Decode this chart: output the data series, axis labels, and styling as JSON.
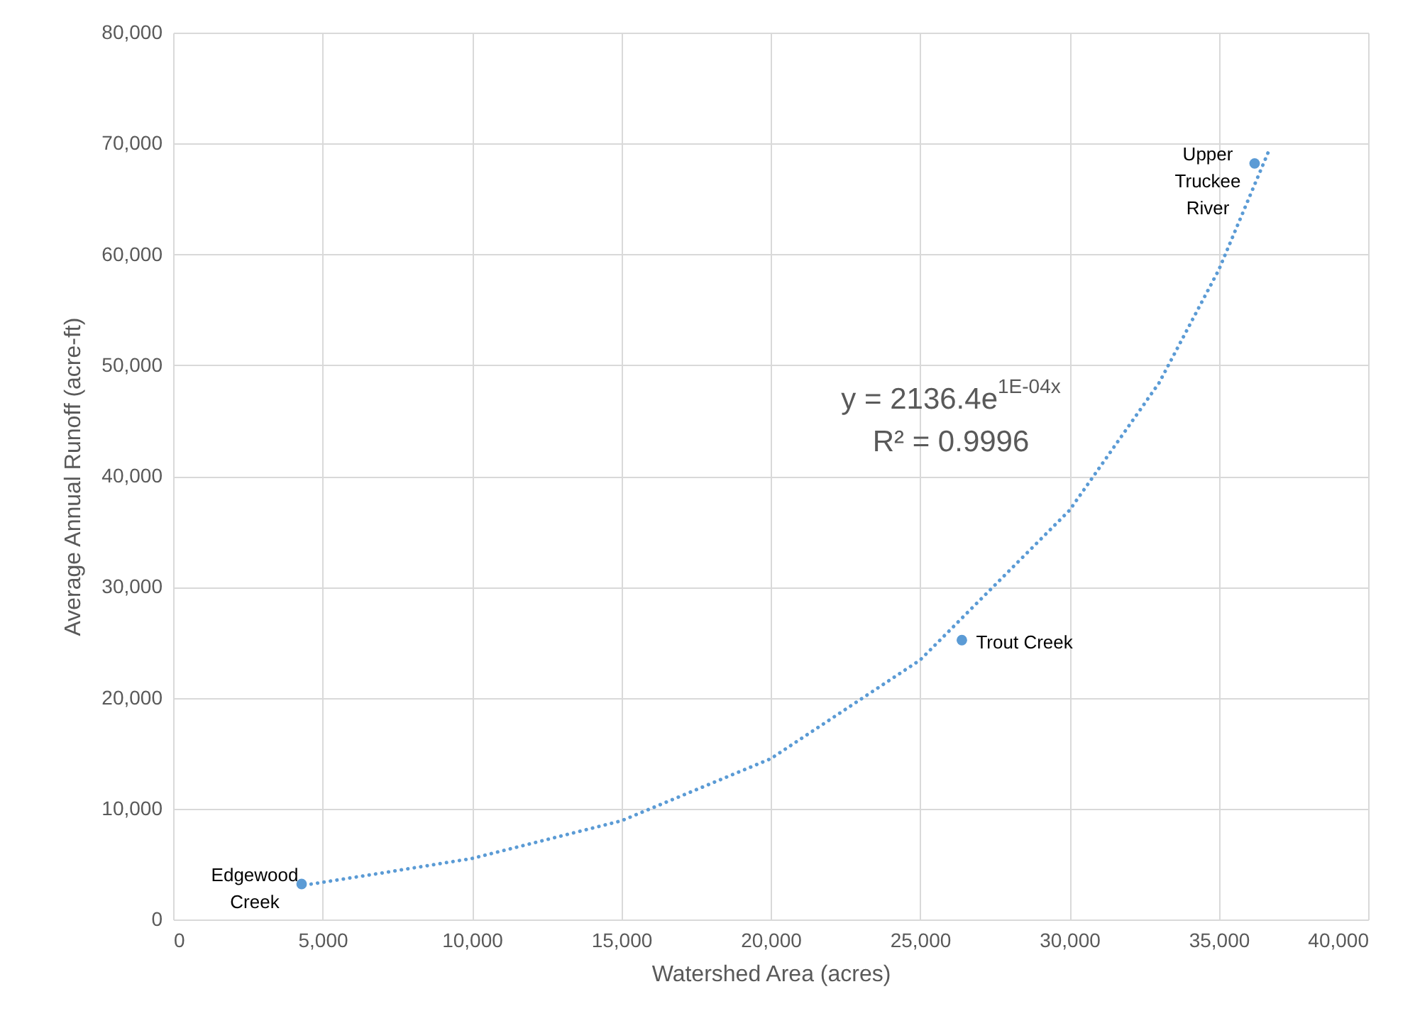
{
  "chart_data": {
    "type": "scatter",
    "xlabel": "Watershed Area (acres)",
    "ylabel": "Average Annual Runoff (acre-ft)",
    "xlim": [
      0,
      40000
    ],
    "xticks": [
      0,
      {
        "value": 5000,
        "label": "5,000"
      },
      {
        "value": 10000,
        "label": "10,000"
      },
      {
        "value": 15000,
        "label": "15,000"
      },
      {
        "value": 20000,
        "label": "20,000"
      },
      {
        "value": 25000,
        "label": "25,000"
      },
      {
        "value": 30000,
        "label": "30,000"
      },
      {
        "value": 35000,
        "label": "35,000"
      },
      {
        "value": 40000,
        "label": "40,000"
      }
    ],
    "ylim": [
      0,
      80000
    ],
    "yticks": [
      0,
      {
        "value": 10000,
        "label": "10,000"
      },
      {
        "value": 20000,
        "label": "20,000"
      },
      {
        "value": 30000,
        "label": "30,000"
      },
      {
        "value": 40000,
        "label": "40,000"
      },
      {
        "value": 50000,
        "label": "50,000"
      },
      {
        "value": 60000,
        "label": "60,000"
      },
      {
        "value": 70000,
        "label": "70,000"
      },
      {
        "value": 80000,
        "label": "80,000"
      }
    ],
    "grid": true,
    "series": [
      {
        "color": "#5b9bd5",
        "marker": "circle",
        "x": [
          4300,
          26400,
          36200
        ],
        "values": [
          3200,
          25200,
          68200
        ]
      },
      {
        "type": "line",
        "color": "#5b9bd5",
        "line_style": "dotted",
        "marker": "none",
        "x": [
          4400,
          7000,
          10000,
          15000,
          20000,
          25000,
          30000,
          33000,
          35000,
          36700
        ],
        "values": [
          3100,
          4200,
          5500,
          8900,
          14500,
          23400,
          36900,
          48400,
          58600,
          69500
        ]
      }
    ],
    "annotations": [
      {
        "text": "Edgewood Creek",
        "x": 4300,
        "y": 3200
      },
      {
        "text": "Trout Creek",
        "x": 26400,
        "y": 25200
      },
      {
        "text": "Upper Truckee River",
        "x": 36200,
        "y": 68200
      },
      "y = 2136.4e$^{1E-04x}$",
      "R² = 0.9996"
    ]
  }
}
